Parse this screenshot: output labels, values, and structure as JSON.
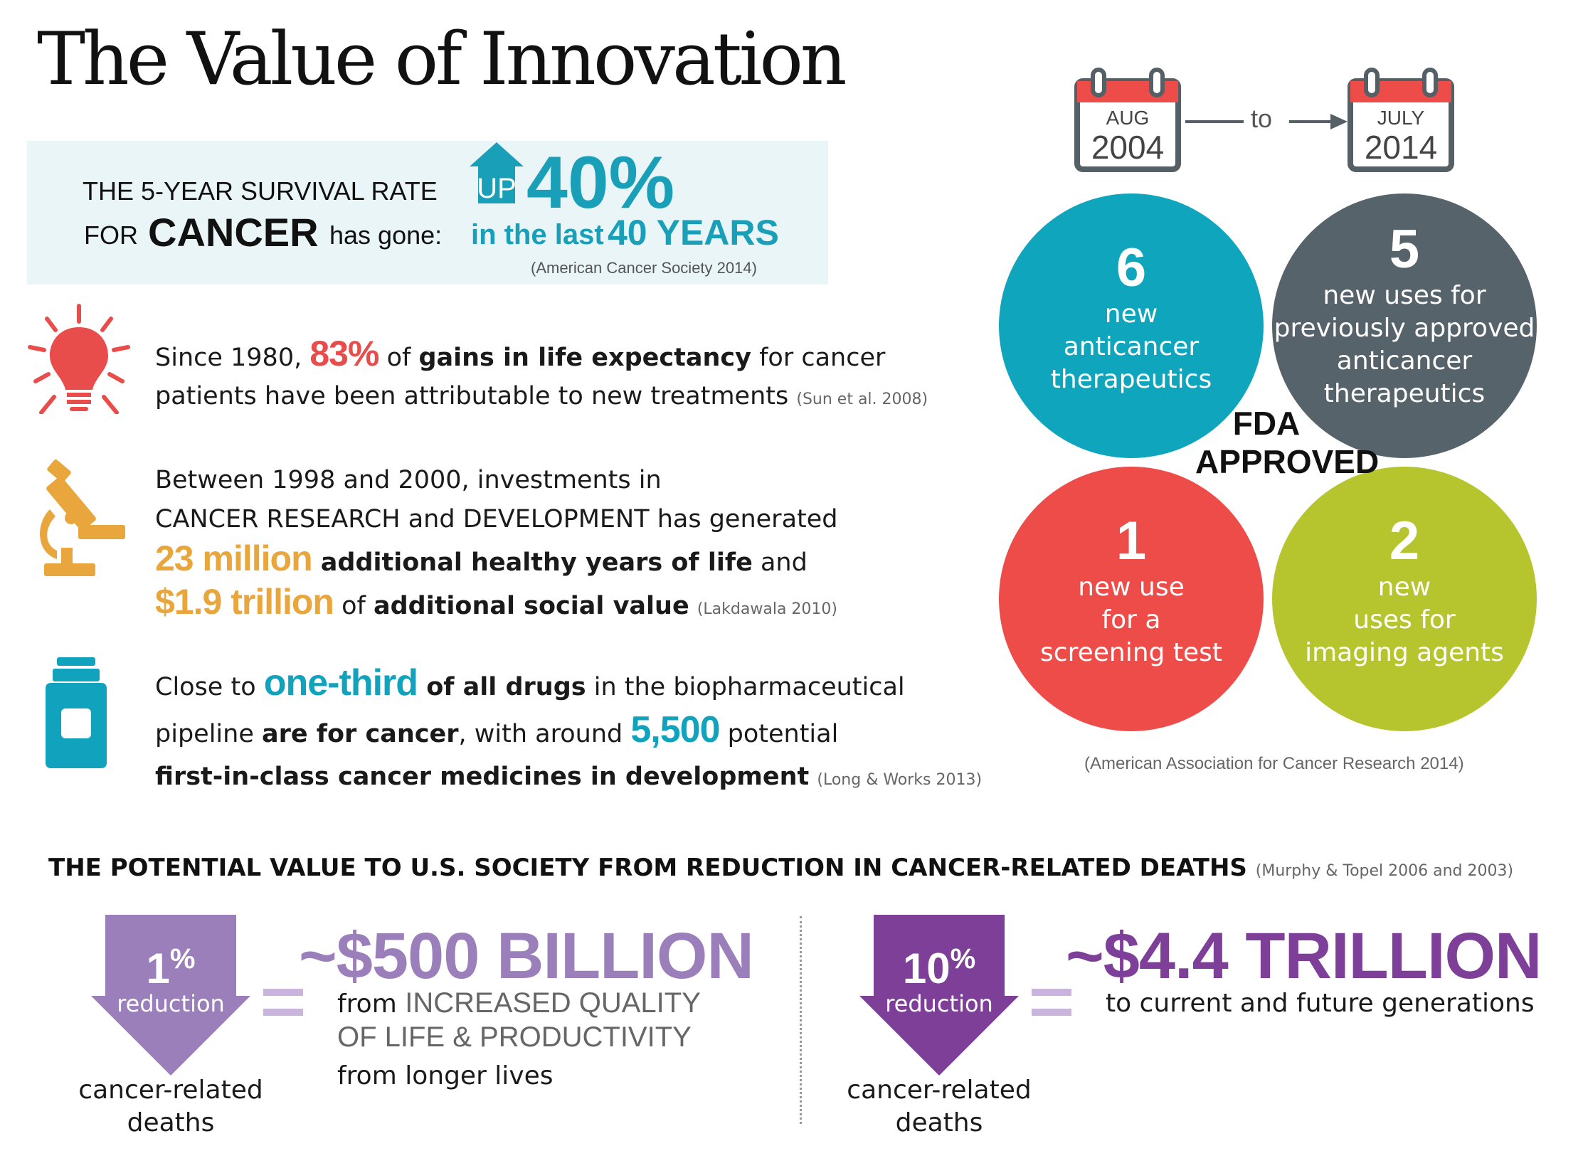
{
  "title": "The Value of Innovation",
  "survival": {
    "line1": "THE 5-YEAR SURVIVAL RATE",
    "line2_prefix": "FOR",
    "cancer": "CANCER",
    "line2_suffix": "has gone:",
    "up": "UP",
    "percent": "40%",
    "in_the_last": "in the last",
    "years": "40 YEARS",
    "citation": "(American Cancer Society 2014)"
  },
  "fact1": {
    "a": "Since 1980, ",
    "pct": "83%",
    "b": " of ",
    "c": "gains in life expectancy",
    "d": " for cancer",
    "e": "patients have been attributable to new treatments ",
    "citation": "(Sun et al. 2008)"
  },
  "fact2": {
    "line1": "Between 1998 and 2000, investments in",
    "line2": "CANCER RESEARCH and DEVELOPMENT has generated",
    "value1": "23 million",
    "text1": " additional healthy years of life",
    "text1b": " and",
    "value2": "$1.9 trillion",
    "text2a": " of ",
    "text2": "additional social value",
    "citation": "(Lakdawala 2010)"
  },
  "fact3": {
    "a": "Close to ",
    "value1": "one-third",
    "b": " of all drugs",
    "c": " in the biopharmaceutical",
    "d": "pipeline ",
    "e": "are for cancer",
    "f": ", with around ",
    "value2": "5,500",
    "g": " potential",
    "h": "first-in-class cancer medicines in development",
    "citation": "(Long & Works 2013)"
  },
  "calendars": {
    "start_month": "AUG",
    "start_year": "2004",
    "to": "to",
    "end_month": "JULY",
    "end_year": "2014"
  },
  "fda": {
    "label": "FDA\nAPPROVED",
    "circles": [
      {
        "num": "6",
        "desc": "new\nanticancer\ntherapeutics",
        "color": "#0ea5bd"
      },
      {
        "num": "5",
        "desc": "new uses for\npreviously approved\nanticancer\ntherapeutics",
        "color": "#57636b"
      },
      {
        "num": "1",
        "desc": "new use\nfor a\nscreening test",
        "color": "#ee4c49"
      },
      {
        "num": "2",
        "desc": "new\nuses for\nimaging agents",
        "color": "#b6c42e"
      }
    ],
    "citation": "(American Association for Cancer Research 2014)"
  },
  "bottom": {
    "heading": "THE POTENTIAL VALUE TO U.S. SOCIETY FROM REDUCTION IN CANCER-RELATED DEATHS",
    "citation": "(Murphy & Topel 2006 and 2003)",
    "left": {
      "pct": "1",
      "pct_sign": "%",
      "reduction": "reduction",
      "deaths": "cancer-related\ndeaths",
      "value": "~$500 BILLION",
      "l1a": "from ",
      "l1b": "INCREASED QUALITY",
      "l2": "OF LIFE & PRODUCTIVITY",
      "l3": "from longer lives",
      "color": "#9b7fbb"
    },
    "right": {
      "pct": "10",
      "pct_sign": "%",
      "reduction": "reduction",
      "deaths": "cancer-related\ndeaths",
      "value": "~$4.4 TRILLION",
      "l1": "to current and future generations",
      "color": "#7d3f98"
    }
  }
}
